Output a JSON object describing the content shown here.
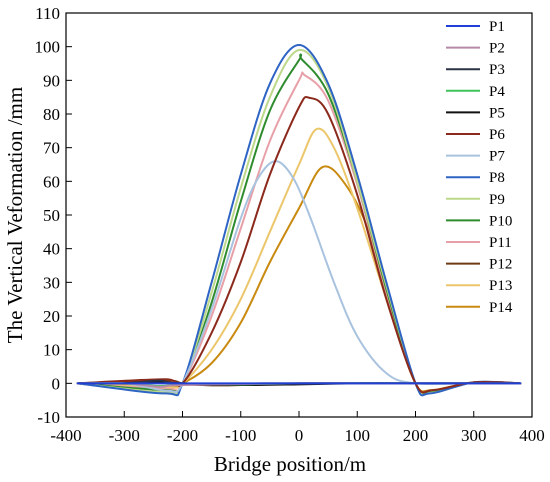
{
  "chart_data": {
    "type": "line",
    "title": "",
    "xlabel": "Bridge position/m",
    "ylabel": "The Vertical Veformation /mm",
    "xlim": [
      -400,
      400
    ],
    "ylim": [
      -10,
      110
    ],
    "xticks": [
      "-400",
      "-300",
      "-200",
      "-100",
      "0",
      "100",
      "200",
      "300",
      "400"
    ],
    "yticks": [
      "-10",
      "0",
      "10",
      "20",
      "30",
      "40",
      "50",
      "60",
      "70",
      "80",
      "90",
      "100",
      "110"
    ],
    "grid": false,
    "legend_position": "top-right",
    "series": [
      {
        "name": "P1",
        "color": "#1f3fd6",
        "x": [
          -380,
          -300,
          -200,
          -100,
          0,
          100,
          200,
          300,
          380
        ],
        "y": [
          0,
          0,
          0,
          0,
          0,
          0,
          0,
          0,
          0
        ]
      },
      {
        "name": "P2",
        "color": "#b58aa6",
        "x": [
          -380,
          -300,
          -240,
          -200,
          0,
          100,
          200,
          300,
          380
        ],
        "y": [
          0,
          0,
          -1.0,
          -0.5,
          0,
          0,
          0,
          0,
          0
        ]
      },
      {
        "name": "P3",
        "color": "#2b3346",
        "x": [
          -380,
          -300,
          -240,
          -200,
          0,
          100,
          200,
          300,
          380
        ],
        "y": [
          0,
          0,
          0.8,
          0,
          0,
          0,
          0,
          0,
          0
        ]
      },
      {
        "name": "P4",
        "color": "#3ec45a",
        "x": [
          -380,
          -300,
          -240,
          -200,
          -100,
          0,
          200,
          300,
          380
        ],
        "y": [
          0,
          0,
          -0.8,
          -0.3,
          -0.3,
          0,
          0,
          0,
          0
        ]
      },
      {
        "name": "P5",
        "color": "#111111",
        "x": [
          -380,
          -300,
          -240,
          -200,
          -100,
          0,
          100,
          200,
          380
        ],
        "y": [
          0,
          0,
          0.5,
          -0.3,
          -0.5,
          -0.3,
          0,
          0,
          0
        ]
      },
      {
        "name": "P6",
        "color": "#8b2a1c",
        "x": [
          -380,
          -230,
          -200,
          -150,
          -100,
          -50,
          0,
          18,
          50,
          100,
          150,
          200,
          230,
          300,
          380
        ],
        "y": [
          0,
          1.2,
          0,
          15,
          36,
          62,
          82,
          84.8,
          80,
          56,
          25,
          0,
          -2.0,
          0.3,
          0
        ]
      },
      {
        "name": "P7",
        "color": "#a9c3df",
        "x": [
          -380,
          -300,
          -225,
          -200,
          -150,
          -100,
          -70,
          -40,
          -10,
          20,
          60,
          100,
          150,
          200,
          300,
          380
        ],
        "y": [
          0,
          0,
          -2.2,
          0,
          22,
          49,
          61,
          66,
          61,
          49,
          30,
          14,
          3,
          0,
          0,
          0
        ]
      },
      {
        "name": "P8",
        "color": "#2e64c4",
        "x": [
          -380,
          -230,
          -200,
          -150,
          -100,
          -50,
          0,
          50,
          100,
          150,
          200,
          225,
          300,
          380
        ],
        "y": [
          0,
          -3.0,
          0,
          30,
          62,
          89,
          100.5,
          89,
          62,
          30,
          0,
          -3.0,
          0.3,
          0
        ]
      },
      {
        "name": "P9",
        "color": "#bcd88a",
        "x": [
          -380,
          -230,
          -200,
          -150,
          -100,
          -50,
          0,
          50,
          100,
          150,
          200,
          228,
          300,
          380
        ],
        "y": [
          0,
          -2.6,
          0,
          27,
          58,
          85,
          99,
          88,
          60,
          29,
          0,
          -2.8,
          0.3,
          0
        ]
      },
      {
        "name": "P10",
        "color": "#2e8b2e",
        "x": [
          -380,
          -230,
          -200,
          -150,
          -100,
          -50,
          0,
          5,
          50,
          100,
          150,
          200,
          228,
          300,
          380
        ],
        "y": [
          0,
          -2.0,
          0,
          24,
          54,
          81,
          96,
          96.2,
          86,
          60,
          28,
          0,
          -2.6,
          0.3,
          0
        ]
      },
      {
        "name": "P11",
        "color": "#e8a0a8",
        "x": [
          -380,
          -230,
          -200,
          -150,
          -100,
          -50,
          0,
          10,
          50,
          100,
          150,
          200,
          228,
          300,
          380
        ],
        "y": [
          0,
          -1.6,
          0,
          20,
          46,
          72,
          90,
          91.5,
          84,
          59,
          27,
          0,
          -2.4,
          0.3,
          0
        ]
      },
      {
        "name": "P12",
        "color": "#6e3a16",
        "x": [
          -380,
          -230,
          -200,
          -150,
          -100,
          -50,
          0,
          100,
          200,
          300,
          380
        ],
        "y": [
          0,
          0.8,
          0,
          -0.6,
          -0.5,
          -0.3,
          0,
          0,
          0,
          0,
          0
        ]
      },
      {
        "name": "P13",
        "color": "#ecc66a",
        "x": [
          -380,
          -230,
          -200,
          -150,
          -100,
          -50,
          0,
          30,
          60,
          100,
          150,
          200,
          228,
          300,
          380
        ],
        "y": [
          0,
          -1.2,
          0,
          10,
          25,
          45,
          65,
          75.5,
          70,
          52,
          25,
          0,
          -2.2,
          0.3,
          0
        ]
      },
      {
        "name": "P14",
        "color": "#c98a10",
        "x": [
          -380,
          -230,
          -200,
          -150,
          -100,
          -50,
          0,
          40,
          80,
          120,
          160,
          200,
          228,
          300,
          380
        ],
        "y": [
          0,
          -0.8,
          0,
          6,
          18,
          36,
          52,
          64.2,
          59,
          45,
          20,
          0,
          -2.0,
          0.3,
          0
        ]
      }
    ]
  }
}
